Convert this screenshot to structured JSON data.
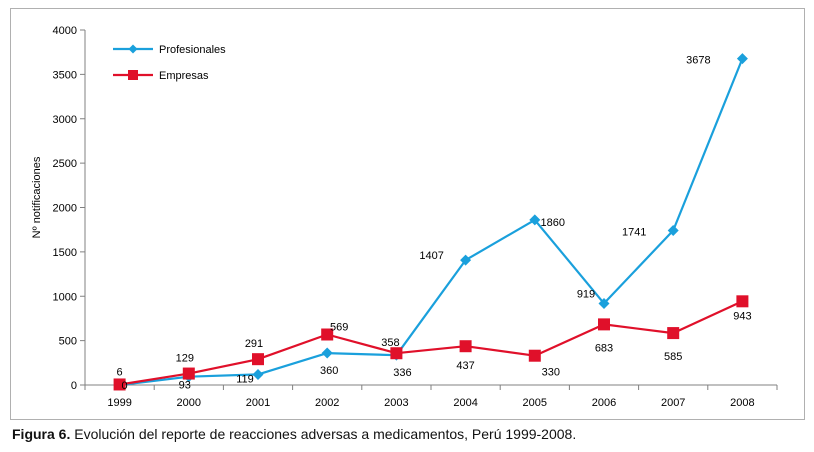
{
  "chart_data": {
    "type": "line",
    "title": "",
    "xlabel": "",
    "ylabel": "Nº notificaciones",
    "ylim": [
      0,
      4000
    ],
    "yticks": [
      0,
      500,
      1000,
      1500,
      2000,
      2500,
      3000,
      3500,
      4000
    ],
    "categories": [
      "1999",
      "2000",
      "2001",
      "2002",
      "2003",
      "2004",
      "2005",
      "2006",
      "2007",
      "2008"
    ],
    "grid": false,
    "legend_position": "top-left",
    "series": [
      {
        "name": "Profesionales",
        "color": "#1aa0dc",
        "marker": "diamond",
        "values": [
          0,
          93,
          119,
          360,
          336,
          1407,
          1860,
          919,
          1741,
          3678
        ],
        "labels": [
          "0",
          "93",
          "119",
          "360",
          "336",
          "1407",
          "1860",
          "919",
          "1741",
          "3678"
        ]
      },
      {
        "name": "Empresas",
        "color": "#e0102a",
        "marker": "square",
        "values": [
          6,
          129,
          291,
          569,
          358,
          437,
          330,
          683,
          585,
          943
        ],
        "labels": [
          "6",
          "129",
          "291",
          "569",
          "358",
          "437",
          "330",
          "683",
          "585",
          "943"
        ]
      }
    ]
  },
  "caption": {
    "label": "Figura 6.",
    "text": " Evolución del reporte de reacciones adversas a medicamentos, Perú 1999-2008."
  }
}
